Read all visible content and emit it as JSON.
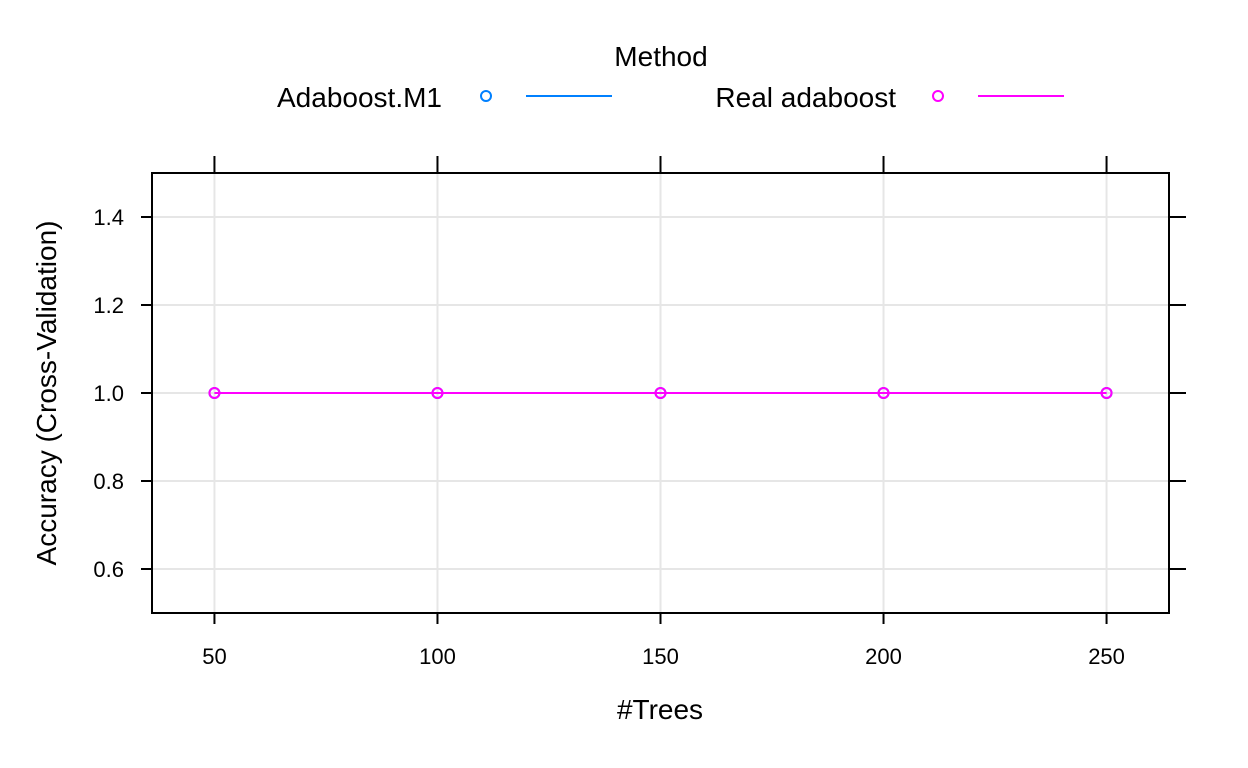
{
  "chart_data": {
    "type": "line",
    "legend": {
      "title": "Method",
      "placement": "top"
    },
    "x": [
      50,
      100,
      150,
      200,
      250
    ],
    "series": [
      {
        "name": "Adaboost.M1",
        "values": [
          1.0,
          1.0,
          1.0,
          1.0,
          1.0
        ],
        "color": "#0080ff"
      },
      {
        "name": "Real adaboost",
        "values": [
          1.0,
          1.0,
          1.0,
          1.0,
          1.0
        ],
        "color": "#ff00ff"
      }
    ],
    "xlabel": "#Trees",
    "ylabel": "Accuracy (Cross-Validation)",
    "xlim": [
      36,
      264
    ],
    "ylim": [
      0.5,
      1.5
    ],
    "xticks": [
      50,
      100,
      150,
      200,
      250
    ],
    "xtick_labels": [
      "50",
      "100",
      "150",
      "200",
      "250"
    ],
    "yticks": [
      0.6,
      0.8,
      1.0,
      1.2,
      1.4
    ],
    "ytick_labels": [
      "0.6",
      "0.8",
      "1.0",
      "1.2",
      "1.4"
    ],
    "grid": true
  }
}
